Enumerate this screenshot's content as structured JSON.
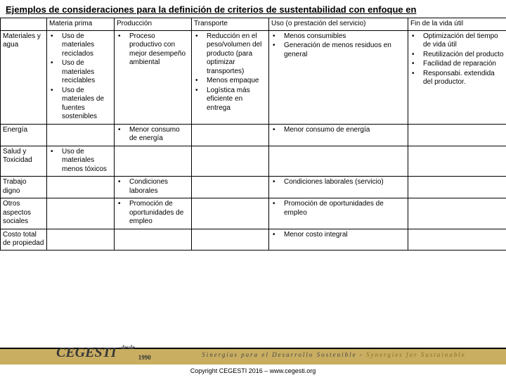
{
  "title": "Ejemplos de consideraciones para la definición de criterios de sustentabilidad con enfoque en",
  "headers": {
    "c0": "",
    "c1": "Materia prima",
    "c2": "Producción",
    "c3": "Transporte",
    "c4": "Uso (o prestación del servicio)",
    "c5": "Fin de la vida útil"
  },
  "rows": {
    "r0": {
      "label": "Materiales y agua",
      "c1": [
        "Uso de materiales reciclados",
        "Uso de materiales reciclables",
        "Uso de materiales de fuentes sostenibles"
      ],
      "c2": [
        "Proceso productivo con mejor desempeño ambiental"
      ],
      "c3": [
        "Reducción en el peso/volumen del producto (para optimizar transportes)",
        "Menos empaque",
        "Logística más eficiente en entrega"
      ],
      "c4": [
        "Menos consumibles",
        "Generación de menos residuos en general"
      ],
      "c5": [
        "Optimización del tiempo de vida útil",
        "Reutilización del producto",
        "Facilidad de reparación",
        "Responsabi. extendida del productor."
      ]
    },
    "r1": {
      "label": "Energía",
      "c1": [],
      "c2": [
        "Menor consumo de energía"
      ],
      "c3": [],
      "c4": [
        "Menor consumo de energía"
      ],
      "c5": []
    },
    "r2": {
      "label": "Salud y Toxicidad",
      "c1": [
        "Uso de materiales menos tóxicos"
      ],
      "c2": [],
      "c3": [],
      "c4": [],
      "c5": []
    },
    "r3": {
      "label": "Trabajo digno",
      "c1": [],
      "c2": [
        "Condiciones laborales"
      ],
      "c3": [],
      "c4": [
        "Condiciones laborales (servicio)"
      ],
      "c5": []
    },
    "r4": {
      "label": "Otros aspectos sociales",
      "c1": [],
      "c2": [
        "Promoción de oportunidades de empleo"
      ],
      "c3": [],
      "c4": [
        "Promoción de oportunidades de empleo"
      ],
      "c5": []
    },
    "r5": {
      "label": "Costo total de propiedad",
      "c1": [],
      "c2": [],
      "c3": [],
      "c4": [
        "Menor costo integral"
      ],
      "c5": []
    }
  },
  "footer": {
    "logo": "CEGESTI",
    "since": "desde",
    "year": "1990",
    "tagline_a": "Sinergias para el Desarrollo Sostenible - ",
    "tagline_b": "Synergies for Sustainable",
    "copyright": "Copyright CEGESTI 2016 – www.cegesti.org"
  }
}
